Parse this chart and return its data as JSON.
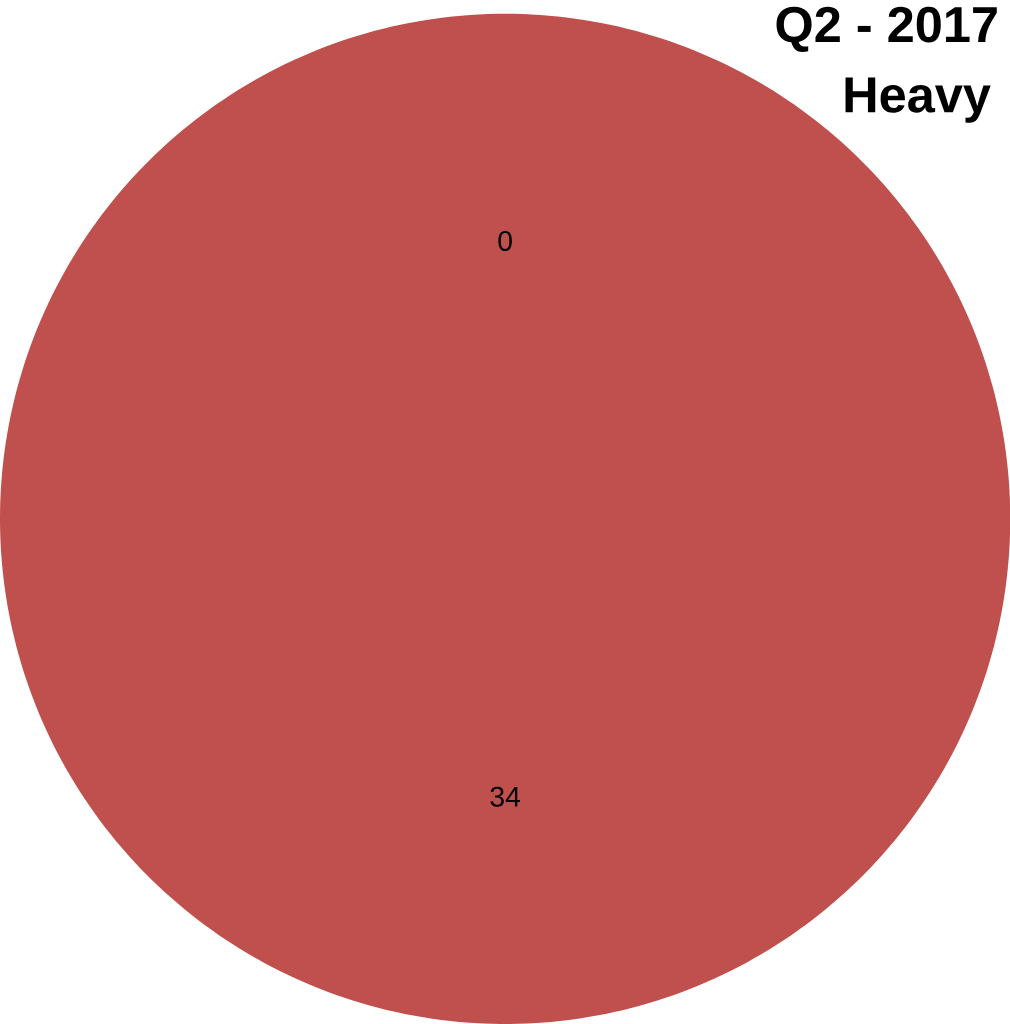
{
  "chart_data": {
    "type": "pie",
    "title": "Q2 - 2017",
    "subtitle": "Heavy",
    "categories": [
      null,
      null
    ],
    "values": [
      0,
      34
    ],
    "colors": [
      "#4f81bd",
      "#c0504d"
    ],
    "value_labels": [
      "0",
      "34"
    ]
  }
}
